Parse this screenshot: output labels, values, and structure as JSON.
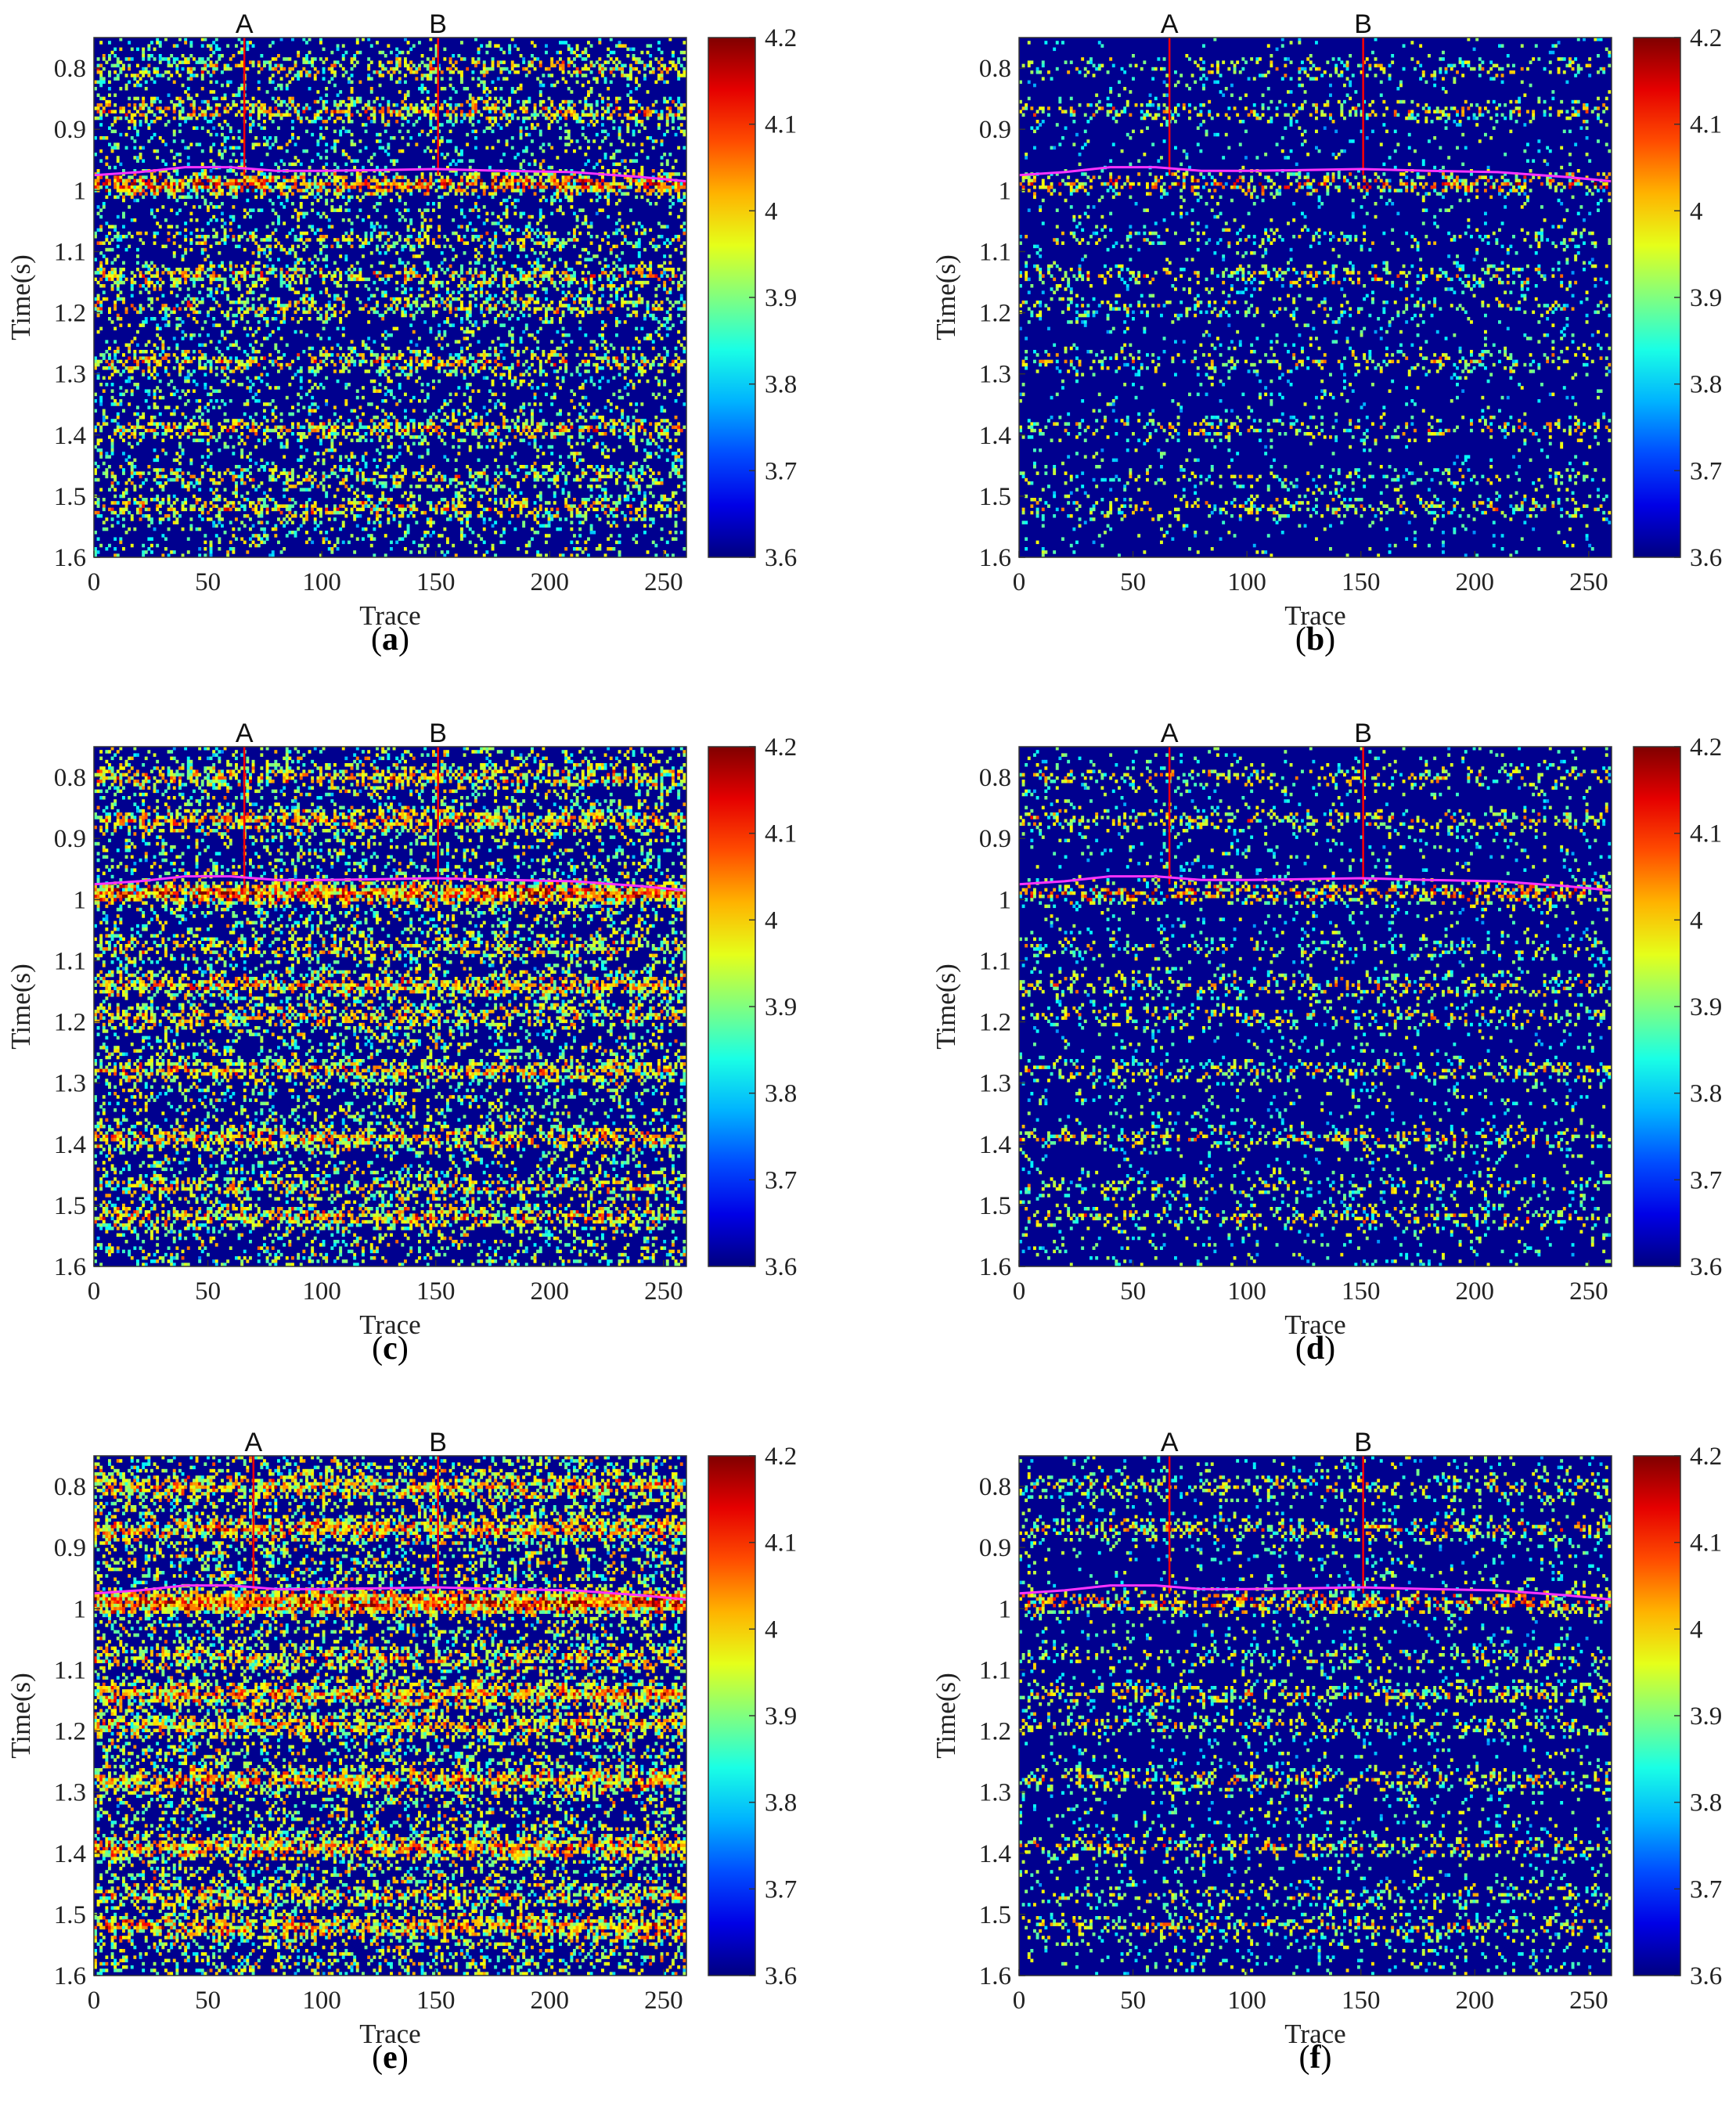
{
  "chart_data": [
    {
      "type": "heatmap",
      "panel": "a",
      "caption_letter": "a",
      "xlabel": "Trace",
      "ylabel": "Time(s)",
      "xlim": [
        0,
        260
      ],
      "ylim": [
        0.75,
        1.6
      ],
      "y_reversed": true,
      "x_ticks": [
        0,
        50,
        100,
        150,
        200,
        250
      ],
      "y_ticks": [
        0.8,
        0.9,
        1,
        1.1,
        1.2,
        1.3,
        1.4,
        1.5,
        1.6
      ],
      "colorbar_ticks": [
        4.2,
        4.1,
        4,
        3.9,
        3.8,
        3.7,
        3.6
      ],
      "colorbar_range": [
        3.6,
        4.2
      ],
      "colormap": "jet",
      "density": 0.55,
      "markers": [
        {
          "label": "A",
          "trace": 66
        },
        {
          "label": "B",
          "trace": 151
        }
      ],
      "horizon_color": "#ff33ff",
      "horizon": [
        [
          0,
          0.975
        ],
        [
          20,
          0.97
        ],
        [
          40,
          0.962
        ],
        [
          60,
          0.962
        ],
        [
          80,
          0.968
        ],
        [
          100,
          0.968
        ],
        [
          120,
          0.967
        ],
        [
          150,
          0.965
        ],
        [
          180,
          0.968
        ],
        [
          210,
          0.97
        ],
        [
          240,
          0.978
        ],
        [
          260,
          0.985
        ]
      ]
    },
    {
      "type": "heatmap",
      "panel": "b",
      "caption_letter": "b",
      "xlabel": "Trace",
      "ylabel": "Time(s)",
      "xlim": [
        0,
        260
      ],
      "ylim": [
        0.75,
        1.6
      ],
      "y_reversed": true,
      "x_ticks": [
        0,
        50,
        100,
        150,
        200,
        250
      ],
      "y_ticks": [
        0.8,
        0.9,
        1,
        1.1,
        1.2,
        1.3,
        1.4,
        1.5,
        1.6
      ],
      "colorbar_ticks": [
        4.2,
        4.1,
        4,
        3.9,
        3.8,
        3.7,
        3.6
      ],
      "colorbar_range": [
        3.6,
        4.2
      ],
      "colormap": "jet",
      "density": 0.18,
      "markers": [
        {
          "label": "A",
          "trace": 66
        },
        {
          "label": "B",
          "trace": 151
        }
      ],
      "horizon_color": "#ff33ff",
      "horizon": [
        [
          0,
          0.975
        ],
        [
          20,
          0.97
        ],
        [
          40,
          0.962
        ],
        [
          60,
          0.962
        ],
        [
          80,
          0.968
        ],
        [
          100,
          0.968
        ],
        [
          120,
          0.967
        ],
        [
          150,
          0.965
        ],
        [
          180,
          0.968
        ],
        [
          210,
          0.97
        ],
        [
          240,
          0.978
        ],
        [
          260,
          0.985
        ]
      ]
    },
    {
      "type": "heatmap",
      "panel": "c",
      "caption_letter": "c",
      "xlabel": "Trace",
      "ylabel": "Time(s)",
      "xlim": [
        0,
        260
      ],
      "ylim": [
        0.75,
        1.6
      ],
      "y_reversed": true,
      "x_ticks": [
        0,
        50,
        100,
        150,
        200,
        250
      ],
      "y_ticks": [
        0.8,
        0.9,
        1,
        1.1,
        1.2,
        1.3,
        1.4,
        1.5,
        1.6
      ],
      "colorbar_ticks": [
        4.2,
        4.1,
        4,
        3.9,
        3.8,
        3.7,
        3.6
      ],
      "colorbar_range": [
        3.6,
        4.2
      ],
      "colormap": "jet",
      "density": 0.75,
      "markers": [
        {
          "label": "A",
          "trace": 66
        },
        {
          "label": "B",
          "trace": 151
        }
      ],
      "horizon_color": "#ff33ff",
      "horizon": [
        [
          0,
          0.975
        ],
        [
          20,
          0.97
        ],
        [
          40,
          0.962
        ],
        [
          60,
          0.962
        ],
        [
          80,
          0.968
        ],
        [
          100,
          0.968
        ],
        [
          120,
          0.967
        ],
        [
          150,
          0.965
        ],
        [
          180,
          0.968
        ],
        [
          210,
          0.97
        ],
        [
          240,
          0.978
        ],
        [
          260,
          0.985
        ]
      ]
    },
    {
      "type": "heatmap",
      "panel": "d",
      "caption_letter": "d",
      "xlabel": "Trace",
      "ylabel": "Time(s)",
      "xlim": [
        0,
        260
      ],
      "ylim": [
        0.75,
        1.6
      ],
      "y_reversed": true,
      "x_ticks": [
        0,
        50,
        100,
        150,
        200,
        250
      ],
      "y_ticks": [
        0.8,
        0.9,
        1,
        1.1,
        1.2,
        1.3,
        1.4,
        1.5,
        1.6
      ],
      "colorbar_ticks": [
        4.2,
        4.1,
        4,
        3.9,
        3.8,
        3.7,
        3.6
      ],
      "colorbar_range": [
        3.6,
        4.2
      ],
      "colormap": "jet",
      "density": 0.25,
      "markers": [
        {
          "label": "A",
          "trace": 66
        },
        {
          "label": "B",
          "trace": 151
        }
      ],
      "horizon_color": "#ff33ff",
      "horizon": [
        [
          0,
          0.975
        ],
        [
          20,
          0.97
        ],
        [
          40,
          0.962
        ],
        [
          60,
          0.962
        ],
        [
          80,
          0.968
        ],
        [
          100,
          0.968
        ],
        [
          120,
          0.967
        ],
        [
          150,
          0.965
        ],
        [
          180,
          0.968
        ],
        [
          210,
          0.97
        ],
        [
          240,
          0.978
        ],
        [
          260,
          0.985
        ]
      ]
    },
    {
      "type": "heatmap",
      "panel": "e",
      "caption_letter": "e",
      "xlabel": "Trace",
      "ylabel": "Time(s)",
      "xlim": [
        0,
        260
      ],
      "ylim": [
        0.75,
        1.6
      ],
      "y_reversed": true,
      "x_ticks": [
        0,
        50,
        100,
        150,
        200,
        250
      ],
      "y_ticks": [
        0.8,
        0.9,
        1,
        1.1,
        1.2,
        1.3,
        1.4,
        1.5,
        1.6
      ],
      "colorbar_ticks": [
        4.2,
        4.1,
        4,
        3.9,
        3.8,
        3.7,
        3.6
      ],
      "colorbar_range": [
        3.6,
        4.2
      ],
      "colormap": "jet",
      "density": 0.95,
      "markers": [
        {
          "label": "A",
          "trace": 70
        },
        {
          "label": "B",
          "trace": 151
        }
      ],
      "horizon_color": "#ff33ff",
      "horizon": [
        [
          0,
          0.975
        ],
        [
          20,
          0.97
        ],
        [
          40,
          0.962
        ],
        [
          60,
          0.962
        ],
        [
          80,
          0.968
        ],
        [
          100,
          0.968
        ],
        [
          120,
          0.967
        ],
        [
          150,
          0.965
        ],
        [
          180,
          0.968
        ],
        [
          210,
          0.97
        ],
        [
          240,
          0.978
        ],
        [
          260,
          0.985
        ]
      ]
    },
    {
      "type": "heatmap",
      "panel": "f",
      "caption_letter": "f",
      "xlabel": "Trace",
      "ylabel": "Time(s)",
      "xlim": [
        0,
        260
      ],
      "ylim": [
        0.75,
        1.6
      ],
      "y_reversed": true,
      "x_ticks": [
        0,
        50,
        100,
        150,
        200,
        250
      ],
      "y_ticks": [
        0.8,
        0.9,
        1,
        1.1,
        1.2,
        1.3,
        1.4,
        1.5,
        1.6
      ],
      "colorbar_ticks": [
        4.2,
        4.1,
        4,
        3.9,
        3.8,
        3.7,
        3.6
      ],
      "colorbar_range": [
        3.6,
        4.2
      ],
      "colormap": "jet",
      "density": 0.3,
      "markers": [
        {
          "label": "A",
          "trace": 66
        },
        {
          "label": "B",
          "trace": 151
        }
      ],
      "horizon_color": "#ff33ff",
      "horizon": [
        [
          0,
          0.975
        ],
        [
          20,
          0.97
        ],
        [
          40,
          0.962
        ],
        [
          60,
          0.962
        ],
        [
          80,
          0.968
        ],
        [
          100,
          0.968
        ],
        [
          120,
          0.967
        ],
        [
          150,
          0.965
        ],
        [
          180,
          0.968
        ],
        [
          210,
          0.97
        ],
        [
          240,
          0.978
        ],
        [
          260,
          0.985
        ]
      ]
    }
  ],
  "colors": {
    "marker_line": "#ff0000",
    "background_low": "#00008f"
  }
}
